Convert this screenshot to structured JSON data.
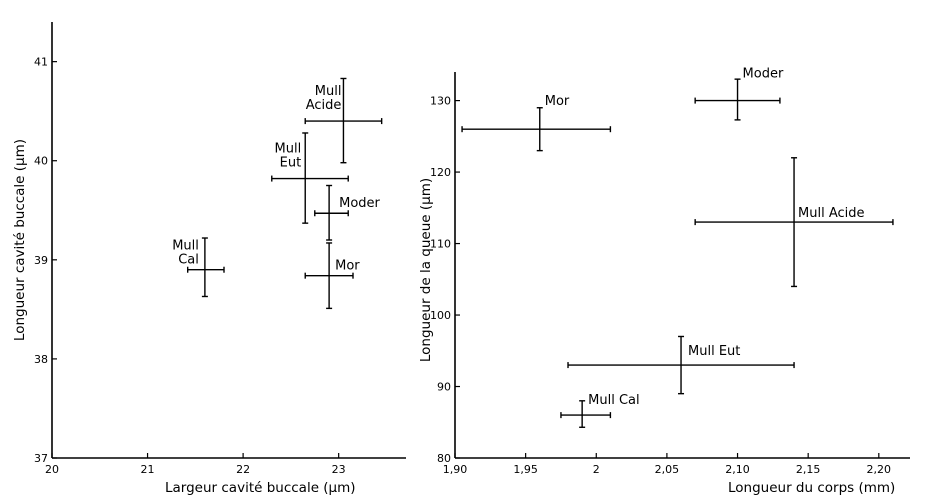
{
  "chart_data": [
    {
      "type": "scatter",
      "xlabel": "Largeur cavité buccale (µm)",
      "ylabel": "Longueur cavité buccale (µm)",
      "xlim": [
        20,
        23.6
      ],
      "ylim": [
        37,
        41.4
      ],
      "xticks": [
        "20",
        "21",
        "22",
        "23"
      ],
      "yticks": [
        "37",
        "38",
        "39",
        "40",
        "41"
      ],
      "points": [
        {
          "label": [
            "Mull",
            "Acide"
          ],
          "x": 23.05,
          "y": 40.4,
          "xerr": [
            22.65,
            23.45
          ],
          "yerr": [
            39.98,
            40.83
          ]
        },
        {
          "label": [
            "Mull",
            "Eut"
          ],
          "x": 22.65,
          "y": 39.82,
          "xerr": [
            22.3,
            23.1
          ],
          "yerr": [
            39.37,
            40.28
          ]
        },
        {
          "label": [
            "Moder"
          ],
          "x": 22.9,
          "y": 39.47,
          "xerr": [
            22.75,
            23.1
          ],
          "yerr": [
            39.2,
            39.75
          ]
        },
        {
          "label": [
            "Mull",
            "Cal"
          ],
          "x": 21.6,
          "y": 38.9,
          "xerr": [
            21.42,
            21.8
          ],
          "yerr": [
            38.63,
            39.22
          ]
        },
        {
          "label": [
            "Mor"
          ],
          "x": 22.9,
          "y": 38.84,
          "xerr": [
            22.65,
            23.15
          ],
          "yerr": [
            38.51,
            39.17
          ]
        }
      ]
    },
    {
      "type": "scatter",
      "xlabel": "Longueur du corps (mm)",
      "ylabel": "Longueur de la queue (µm)",
      "xlim": [
        1.9,
        2.215
      ],
      "ylim": [
        80,
        134
      ],
      "xticks": [
        "1,90",
        "1,95",
        "2",
        "2,05",
        "2,10",
        "2,15",
        "2,20"
      ],
      "yticks": [
        "80",
        "90",
        "100",
        "110",
        "120",
        "130"
      ],
      "points": [
        {
          "label": [
            "Moder"
          ],
          "x": 2.1,
          "y": 130,
          "xerr": [
            2.07,
            2.13
          ],
          "yerr": [
            127.3,
            133
          ]
        },
        {
          "label": [
            "Mor"
          ],
          "x": 1.96,
          "y": 126,
          "xerr": [
            1.905,
            2.01
          ],
          "yerr": [
            123,
            129
          ]
        },
        {
          "label": [
            "Mull Acide"
          ],
          "x": 2.14,
          "y": 113,
          "xerr": [
            2.07,
            2.21
          ],
          "yerr": [
            104,
            122
          ]
        },
        {
          "label": [
            "Mull Eut"
          ],
          "x": 2.06,
          "y": 93,
          "xerr": [
            1.98,
            2.14
          ],
          "yerr": [
            89,
            97
          ]
        },
        {
          "label": [
            "Mull Cal"
          ],
          "x": 1.99,
          "y": 86,
          "xerr": [
            1.975,
            2.01
          ],
          "yerr": [
            84.3,
            88
          ]
        }
      ]
    }
  ]
}
